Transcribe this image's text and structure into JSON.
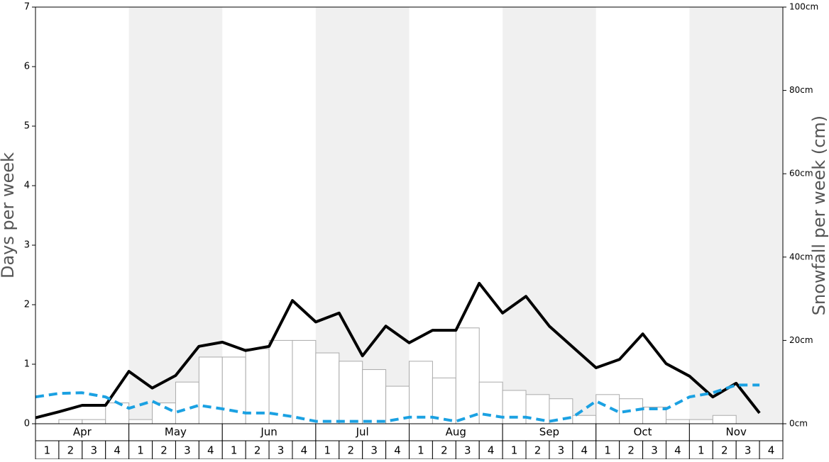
{
  "chart_data": {
    "type": "bar-line",
    "y_label": "Days per week",
    "y2_label": "Snowfall per week (cm)",
    "months": [
      "Apr",
      "May",
      "Jun",
      "Jul",
      "Aug",
      "Sep",
      "Oct",
      "Nov"
    ],
    "categories": [
      "1",
      "2",
      "3",
      "4",
      "1",
      "2",
      "3",
      "4",
      "1",
      "2",
      "3",
      "4",
      "1",
      "2",
      "3",
      "4",
      "1",
      "2",
      "3",
      "4",
      "1",
      "2",
      "3",
      "4",
      "1",
      "2",
      "3",
      "4",
      "1",
      "2",
      "3",
      "4"
    ],
    "ylim": [
      0,
      7
    ],
    "yticks": [
      0,
      1,
      2,
      3,
      4,
      5,
      6,
      7
    ],
    "y2lim": [
      0,
      100
    ],
    "y2ticks": [
      {
        "value": 0,
        "label": "0cm"
      },
      {
        "value": 20,
        "label": "20cm"
      },
      {
        "value": 40,
        "label": "40cm"
      },
      {
        "value": 60,
        "label": "60cm"
      },
      {
        "value": 80,
        "label": "80cm"
      },
      {
        "value": 100,
        "label": "100cm"
      }
    ],
    "band_color": "#f0f0f0",
    "series": [
      {
        "type": "bar",
        "axis": "y2",
        "color": "#ffffff",
        "stroke": "#aaaaaa",
        "values": [
          0,
          1,
          1,
          5,
          1,
          5,
          10,
          16,
          16,
          18,
          20,
          20,
          17,
          15,
          13,
          9,
          15,
          11,
          23,
          10,
          8,
          7,
          6,
          2,
          7,
          6,
          4,
          1,
          1,
          2,
          0,
          0
        ]
      },
      {
        "type": "line",
        "color": "#000000",
        "dashed": false,
        "values": [
          0.1,
          0.2,
          0.31,
          0.31,
          0.88,
          0.6,
          0.81,
          1.3,
          1.37,
          1.23,
          1.3,
          2.07,
          1.71,
          1.86,
          1.14,
          1.64,
          1.36,
          1.57,
          1.57,
          2.36,
          1.86,
          2.14,
          1.64,
          1.29,
          0.94,
          1.08,
          1.51,
          1.01,
          0.8,
          0.45,
          0.68,
          0.18
        ]
      },
      {
        "type": "line",
        "color": "#1ba1e2",
        "dashed": true,
        "values": [
          0.45,
          0.51,
          0.52,
          0.45,
          0.26,
          0.38,
          0.19,
          0.31,
          0.25,
          0.18,
          0.18,
          0.12,
          0.04,
          0.04,
          0.04,
          0.04,
          0.11,
          0.11,
          0.04,
          0.17,
          0.11,
          0.11,
          0.04,
          0.11,
          0.38,
          0.19,
          0.25,
          0.25,
          0.45,
          0.52,
          0.65,
          0.65
        ]
      }
    ]
  }
}
